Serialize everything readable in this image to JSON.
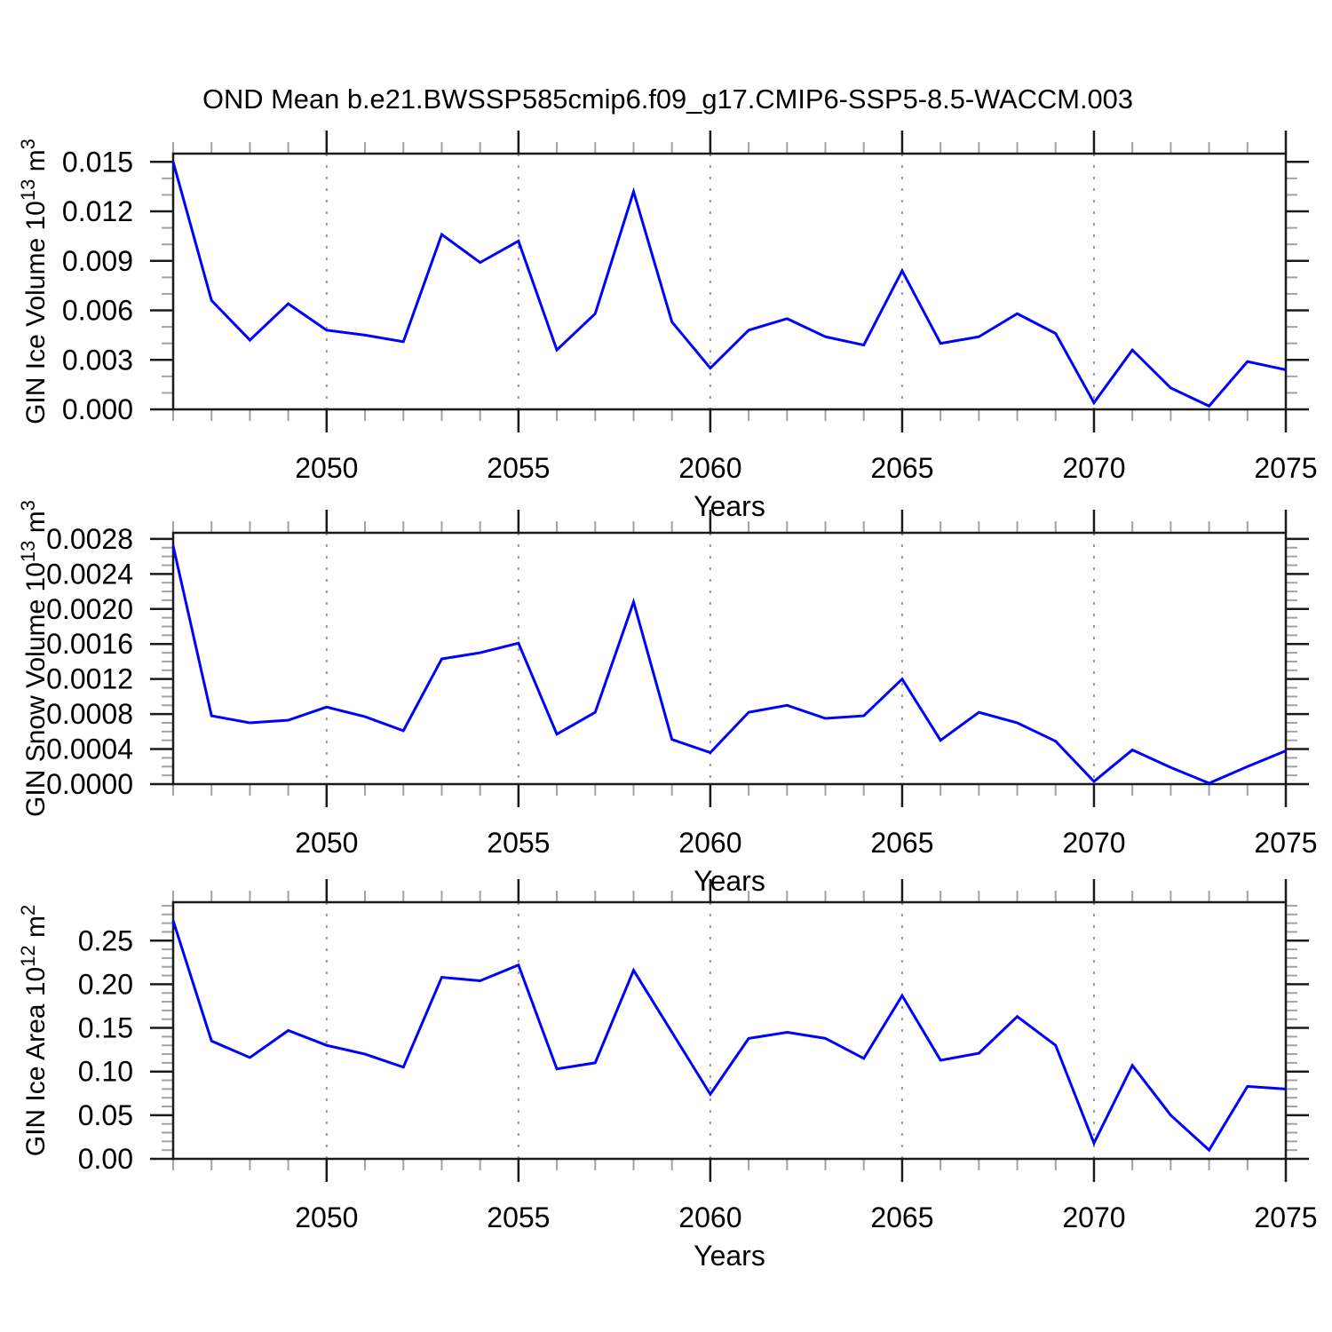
{
  "title": "OND Mean b.e21.BWSSP585cmip6.f09_g17.CMIP6-SSP5-8.5-WACCM.003",
  "colors": {
    "line": "#0000ff",
    "grid": "#999999",
    "frame": "#1a1a1a",
    "tick_major": "#1a1a1a",
    "tick_minor": "#a3a3a3",
    "text": "#000000"
  },
  "x_axis": {
    "label": "Years",
    "range": [
      2046,
      2075
    ],
    "major_ticks": [
      2050,
      2055,
      2060,
      2065,
      2070,
      2075
    ],
    "minor_step_years": 1,
    "gridlines": [
      2050,
      2055,
      2060,
      2065,
      2070
    ],
    "grid_style": "dashed-vertical"
  },
  "years": [
    2046,
    2047,
    2048,
    2049,
    2050,
    2051,
    2052,
    2053,
    2054,
    2055,
    2056,
    2057,
    2058,
    2059,
    2060,
    2061,
    2062,
    2063,
    2064,
    2065,
    2066,
    2067,
    2068,
    2069,
    2070,
    2071,
    2072,
    2073,
    2074,
    2075
  ],
  "chart_data": [
    {
      "type": "line",
      "name": "ice-volume",
      "ylabel": "GIN Ice Volume 10^13 m^3",
      "ylabel_parts": [
        {
          "t": "GIN Ice Volume 10"
        },
        {
          "sup": "13"
        },
        {
          "t": " m"
        },
        {
          "sup": "3"
        }
      ],
      "ylim": [
        0,
        0.0155
      ],
      "ytick_values": [
        0,
        0.003,
        0.006,
        0.009,
        0.012,
        0.015
      ],
      "ytick_labels": [
        "0.000",
        "0.003",
        "0.006",
        "0.009",
        "0.012",
        "0.015"
      ],
      "y_minor_step": 0.001,
      "xlabel": "Years",
      "legend": "none",
      "x": [
        2046,
        2047,
        2048,
        2049,
        2050,
        2051,
        2052,
        2053,
        2054,
        2055,
        2056,
        2057,
        2058,
        2059,
        2060,
        2061,
        2062,
        2063,
        2064,
        2065,
        2066,
        2067,
        2068,
        2069,
        2070,
        2071,
        2072,
        2073,
        2074,
        2075
      ],
      "values": [
        0.015,
        0.0066,
        0.0042,
        0.0064,
        0.0048,
        0.0045,
        0.0041,
        0.0106,
        0.0089,
        0.0102,
        0.0036,
        0.0058,
        0.0132,
        0.0053,
        0.0025,
        0.0048,
        0.0055,
        0.0044,
        0.0039,
        0.0084,
        0.004,
        0.0044,
        0.0058,
        0.0046,
        0.0004,
        0.0036,
        0.0013,
        0.0002,
        0.0029,
        0.0024
      ]
    },
    {
      "type": "line",
      "name": "snow-volume",
      "ylabel": "GIN Snow Volume 10^13 m^3",
      "ylabel_parts": [
        {
          "t": "GIN Snow Volume 10"
        },
        {
          "sup": "13"
        },
        {
          "t": " m"
        },
        {
          "sup": "3"
        }
      ],
      "ylim": [
        0,
        0.00287
      ],
      "ytick_values": [
        0,
        0.0004,
        0.0008,
        0.0012,
        0.0016,
        0.002,
        0.0024,
        0.0028
      ],
      "ytick_labels": [
        "0.0000",
        "0.0004",
        "0.0008",
        "0.0012",
        "0.0016",
        "0.0020",
        "0.0024",
        "0.0028"
      ],
      "y_minor_step": 0.0001,
      "xlabel": "Years",
      "legend": "none",
      "x": [
        2046,
        2047,
        2048,
        2049,
        2050,
        2051,
        2052,
        2053,
        2054,
        2055,
        2056,
        2057,
        2058,
        2059,
        2060,
        2061,
        2062,
        2063,
        2064,
        2065,
        2066,
        2067,
        2068,
        2069,
        2070,
        2071,
        2072,
        2073,
        2074,
        2075
      ],
      "values": [
        0.00272,
        0.00078,
        0.0007,
        0.00073,
        0.00088,
        0.00077,
        0.00061,
        0.00143,
        0.0015,
        0.00161,
        0.00057,
        0.00082,
        0.00208,
        0.00051,
        0.00036,
        0.00082,
        0.0009,
        0.00075,
        0.00078,
        0.0012,
        0.0005,
        0.00082,
        0.0007,
        0.00049,
        3e-05,
        0.00039,
        0.00019,
        1e-05,
        0.0002,
        0.00038
      ]
    },
    {
      "type": "line",
      "name": "ice-area",
      "ylabel": "GIN Ice Area 10^12 m^2",
      "ylabel_parts": [
        {
          "t": "GIN Ice Area 10"
        },
        {
          "sup": "12"
        },
        {
          "t": " m"
        },
        {
          "sup": "2"
        }
      ],
      "ylim": [
        0,
        0.294
      ],
      "ytick_values": [
        0,
        0.05,
        0.1,
        0.15,
        0.2,
        0.25
      ],
      "ytick_labels": [
        "0.00",
        "0.05",
        "0.10",
        "0.15",
        "0.20",
        "0.25"
      ],
      "y_minor_step": 0.01,
      "xlabel": "Years",
      "legend": "none",
      "x": [
        2046,
        2047,
        2048,
        2049,
        2050,
        2051,
        2052,
        2053,
        2054,
        2055,
        2056,
        2057,
        2058,
        2059,
        2060,
        2061,
        2062,
        2063,
        2064,
        2065,
        2066,
        2067,
        2068,
        2069,
        2070,
        2071,
        2072,
        2073,
        2074,
        2075
      ],
      "values": [
        0.273,
        0.135,
        0.116,
        0.147,
        0.13,
        0.12,
        0.105,
        0.208,
        0.204,
        0.222,
        0.103,
        0.11,
        0.216,
        0.145,
        0.074,
        0.138,
        0.145,
        0.138,
        0.115,
        0.187,
        0.113,
        0.121,
        0.163,
        0.13,
        0.018,
        0.107,
        0.05,
        0.01,
        0.083,
        0.08
      ]
    }
  ]
}
